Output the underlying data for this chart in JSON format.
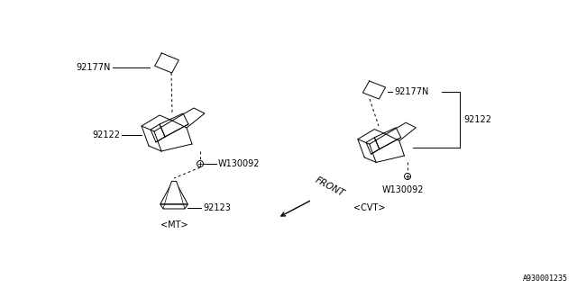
{
  "bg_color": "#ffffff",
  "diagram_id": "A930001235",
  "mt_label": "<MT>",
  "cvt_label": "<CVT>",
  "front_label": "FRONT",
  "lw": 0.7,
  "fs": 7.0
}
